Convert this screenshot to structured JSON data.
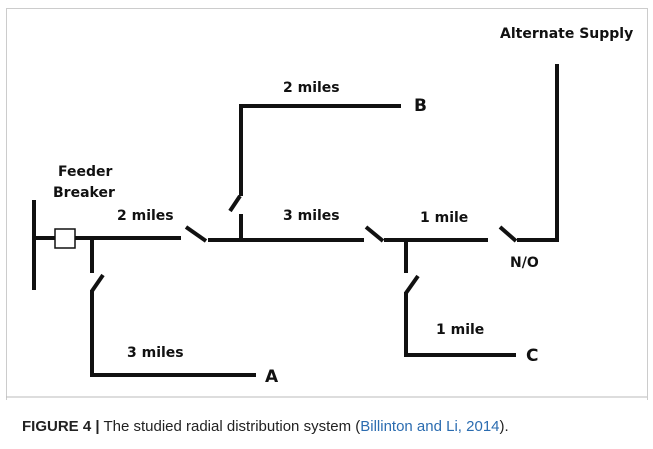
{
  "diagram": {
    "labels": {
      "feeder": "Feeder",
      "breaker": "Breaker",
      "seg1": "2 miles",
      "seg2": "3 miles",
      "seg3": "1 mile",
      "branch_b": "2 miles",
      "branch_a": "3 miles",
      "branch_c": "1 mile",
      "node_a": "A",
      "node_b": "B",
      "node_c": "C",
      "normally_open": "N/O",
      "alternate": "Alternate Supply"
    }
  },
  "caption": {
    "label": "FIGURE 4 |",
    "text": "The studied radial distribution system (",
    "reference": "Billinton and Li, 2014",
    "end": ")."
  }
}
